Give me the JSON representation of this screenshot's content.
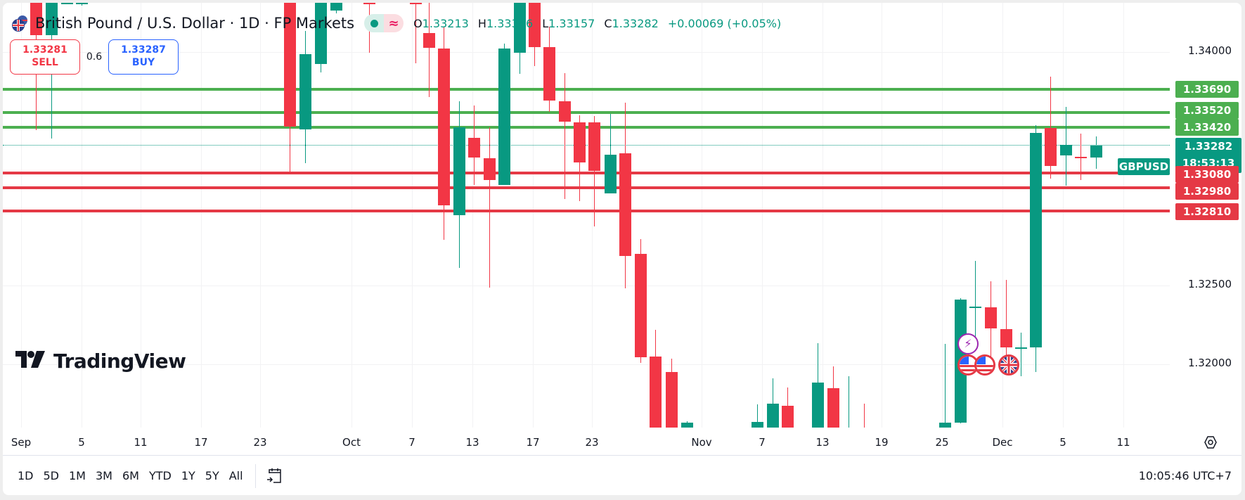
{
  "header": {
    "symbol_title": "British Pound / U.S. Dollar · 1D · FP Markets",
    "ohlc": {
      "open_label": "O",
      "open": "1.33213",
      "high_label": "H",
      "high": "1.33346",
      "low_label": "L",
      "low": "1.33157",
      "close_label": "C",
      "close": "1.33282",
      "change": "+0.00069 (+0.05%)"
    },
    "status_icons": [
      "market-open-dot-icon",
      "delayed-data-approx-icon"
    ]
  },
  "trade": {
    "sell_price": "1.33281",
    "sell_label": "SELL",
    "spread": "0.6",
    "buy_price": "1.33287",
    "buy_label": "BUY"
  },
  "price_axis": {
    "ticks": [
      "1.34000",
      "1.32500",
      "1.32000"
    ],
    "current_symbol": "GBPUSD",
    "current_price": "1.33282",
    "countdown": "18:53:13"
  },
  "levels": {
    "resistance": [
      "1.33690",
      "1.33520",
      "1.33420"
    ],
    "support": [
      "1.33080",
      "1.32980",
      "1.32810"
    ],
    "colors": {
      "resistance": "#4caf50",
      "support": "#e53945"
    }
  },
  "time_axis": {
    "labels": [
      "Sep",
      "5",
      "11",
      "17",
      "23",
      "Oct",
      "7",
      "13",
      "17",
      "23",
      "Nov",
      "7",
      "13",
      "19",
      "25",
      "Dec",
      "5",
      "11"
    ]
  },
  "toolbar": {
    "ranges": [
      "1D",
      "5D",
      "1M",
      "3M",
      "6M",
      "YTD",
      "1Y",
      "5Y",
      "All"
    ],
    "goto_icon": "calendar-goto-icon",
    "clock": "10:05:46 UTC+7"
  },
  "branding": {
    "logo_text": "TradingView"
  },
  "colors": {
    "up": "#089981",
    "down": "#f23645",
    "sell": "#f23645",
    "buy": "#2962ff"
  },
  "chart_data": {
    "type": "candlestick",
    "title": "British Pound / U.S. Dollar · 1D · FP Markets",
    "symbol": "GBPUSD",
    "interval": "1D",
    "xlabel": "",
    "ylabel": "",
    "y_ticks": [
      1.34,
      1.325,
      1.32
    ],
    "last": {
      "open": 1.33213,
      "high": 1.33346,
      "low": 1.33157,
      "close": 1.33282,
      "change": 0.00069,
      "change_pct": 0.05
    },
    "horizontal_levels": [
      {
        "price": 1.3369,
        "color": "green"
      },
      {
        "price": 1.3352,
        "color": "green"
      },
      {
        "price": 1.3342,
        "color": "green"
      },
      {
        "price": 1.3308,
        "color": "red"
      },
      {
        "price": 1.3298,
        "color": "red"
      },
      {
        "price": 1.3281,
        "color": "red"
      }
    ],
    "x_tick_labels": [
      "Sep",
      "5",
      "11",
      "17",
      "23",
      "Oct",
      "7",
      "13",
      "17",
      "23",
      "Nov",
      "7",
      "13",
      "19",
      "25",
      "Dec",
      "5",
      "11"
    ],
    "grid": true,
    "legend_position": "top-left"
  }
}
